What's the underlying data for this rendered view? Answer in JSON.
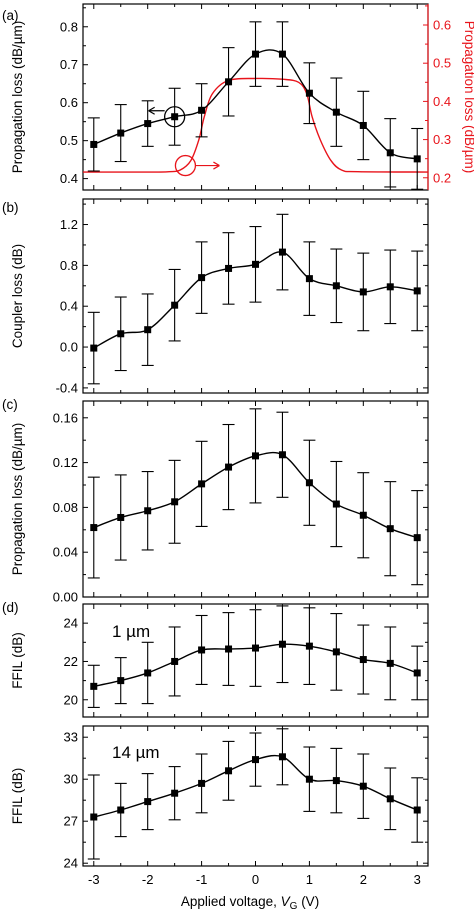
{
  "chart_data": [
    {
      "type": "line",
      "panel_label": "(a)",
      "x": [
        -3,
        -2.5,
        -2,
        -1.5,
        -1,
        -0.5,
        0,
        0.5,
        1,
        1.5,
        2,
        2.5,
        3
      ],
      "xlim": [
        -3.2,
        3.2
      ],
      "ylabel": "Propagation loss (dB/µm)",
      "ylim": [
        0.37,
        0.86
      ],
      "yticks": [
        "0.4",
        "0.5",
        "0.6",
        "0.7",
        "0.8"
      ],
      "series": [
        {
          "axis": "left",
          "color": "#000000",
          "marker": "square",
          "values": [
            0.49,
            0.52,
            0.545,
            0.563,
            0.58,
            0.655,
            0.728,
            0.728,
            0.625,
            0.575,
            0.54,
            0.468,
            0.452
          ],
          "errors": [
            0.07,
            0.075,
            0.06,
            0.075,
            0.07,
            0.09,
            0.085,
            0.085,
            0.08,
            0.09,
            0.09,
            0.09,
            0.08
          ]
        },
        {
          "axis": "right",
          "color": "#e8141b",
          "marker": "none",
          "curve_x": [
            -3.2,
            -1.9,
            -1.6,
            -1.4,
            -1.2,
            -1.05,
            -0.95,
            -0.8,
            -0.5,
            0,
            0.5,
            0.8,
            0.95,
            1.05,
            1.2,
            1.4,
            1.6,
            1.9,
            3.2
          ],
          "curve_y": [
            0.215,
            0.215,
            0.216,
            0.22,
            0.245,
            0.3,
            0.36,
            0.42,
            0.455,
            0.46,
            0.458,
            0.45,
            0.42,
            0.36,
            0.3,
            0.245,
            0.22,
            0.216,
            0.215
          ]
        }
      ],
      "secondary_y": {
        "label": "Propagation loss (dB/µm)",
        "color": "#e8141b",
        "ylim": [
          0.168,
          0.655
        ],
        "yticks": [
          "0.2",
          "0.3",
          "0.4",
          "0.5",
          "0.6"
        ]
      },
      "annotations": [
        {
          "symbol": "circle-with-left-arrow",
          "series": "left",
          "at_x": -1.5,
          "at_y": 0.563,
          "color": "#000000"
        },
        {
          "symbol": "circle-with-right-arrow",
          "series": "right",
          "at_x": -1.3,
          "at_y": 0.232,
          "color": "#e8141b"
        }
      ]
    },
    {
      "type": "line",
      "panel_label": "(b)",
      "x": [
        -3,
        -2.5,
        -2,
        -1.5,
        -1,
        -0.5,
        0,
        0.5,
        1,
        1.5,
        2,
        2.5,
        3
      ],
      "xlim": [
        -3.2,
        3.2
      ],
      "ylabel": "Coupler loss (dB)",
      "ylim": [
        -0.45,
        1.45
      ],
      "yticks": [
        "-0.4",
        "0.0",
        "0.4",
        "0.8",
        "1.2"
      ],
      "series": [
        {
          "color": "#000000",
          "marker": "square",
          "values": [
            -0.01,
            0.13,
            0.17,
            0.41,
            0.68,
            0.77,
            0.81,
            0.93,
            0.67,
            0.6,
            0.54,
            0.59,
            0.55
          ],
          "errors": [
            0.35,
            0.36,
            0.35,
            0.35,
            0.35,
            0.35,
            0.37,
            0.37,
            0.36,
            0.36,
            0.38,
            0.36,
            0.39
          ]
        }
      ]
    },
    {
      "type": "line",
      "panel_label": "(c)",
      "x": [
        -3,
        -2.5,
        -2,
        -1.5,
        -1,
        -0.5,
        0,
        0.5,
        1,
        1.5,
        2,
        2.5,
        3
      ],
      "xlim": [
        -3.2,
        3.2
      ],
      "ylabel": "Propagation loss (dB/µm)",
      "ylim": [
        0.0,
        0.175
      ],
      "yticks": [
        "0.00",
        "0.04",
        "0.08",
        "0.12",
        "0.16"
      ],
      "series": [
        {
          "color": "#000000",
          "marker": "square",
          "values": [
            0.062,
            0.071,
            0.077,
            0.085,
            0.101,
            0.116,
            0.126,
            0.127,
            0.102,
            0.083,
            0.073,
            0.061,
            0.053
          ],
          "errors": [
            0.045,
            0.038,
            0.035,
            0.037,
            0.038,
            0.038,
            0.042,
            0.038,
            0.038,
            0.038,
            0.038,
            0.042,
            0.042
          ]
        }
      ]
    },
    {
      "type": "line",
      "panel_label": "(d)",
      "annotation_text": "1 µm",
      "x": [
        -3,
        -2.5,
        -2,
        -1.5,
        -1,
        -0.5,
        0,
        0.5,
        1,
        1.5,
        2,
        2.5,
        3
      ],
      "xlim": [
        -3.2,
        3.2
      ],
      "ylabel": "FFIL (dB)",
      "ylim": [
        19.1,
        25.0
      ],
      "yticks": [
        "20",
        "22",
        "24"
      ],
      "series": [
        {
          "color": "#000000",
          "marker": "square",
          "values": [
            20.7,
            21.0,
            21.4,
            22.0,
            22.6,
            22.65,
            22.7,
            22.9,
            22.8,
            22.5,
            22.1,
            21.9,
            21.4
          ],
          "errors": [
            1.1,
            1.2,
            1.6,
            1.8,
            1.8,
            1.9,
            2.0,
            2.0,
            2.0,
            2.0,
            1.8,
            1.9,
            1.4
          ]
        }
      ]
    },
    {
      "type": "line",
      "annotation_text": "14 µm",
      "x": [
        -3,
        -2.5,
        -2,
        -1.5,
        -1,
        -0.5,
        0,
        0.5,
        1,
        1.5,
        2,
        2.5,
        3
      ],
      "xlim": [
        -3.2,
        3.2
      ],
      "xticks": [
        "-3",
        "-2",
        "-1",
        "0",
        "1",
        "2",
        "3"
      ],
      "xlabel_main": "Applied voltage, ",
      "xlabel_var": "V",
      "xlabel_sub": "G",
      "xlabel_unit": " (V)",
      "ylabel": "FFIL (dB)",
      "ylim": [
        23.8,
        33.8
      ],
      "yticks": [
        "24",
        "27",
        "30",
        "33"
      ],
      "series": [
        {
          "color": "#000000",
          "marker": "square",
          "values": [
            27.3,
            27.8,
            28.4,
            29.0,
            29.7,
            30.6,
            31.4,
            31.6,
            30.0,
            29.9,
            29.5,
            28.6,
            27.8
          ],
          "errors": [
            3.0,
            1.9,
            2.0,
            1.9,
            2.1,
            2.1,
            1.9,
            2.0,
            2.3,
            2.3,
            2.3,
            2.2,
            2.3
          ]
        }
      ]
    }
  ]
}
